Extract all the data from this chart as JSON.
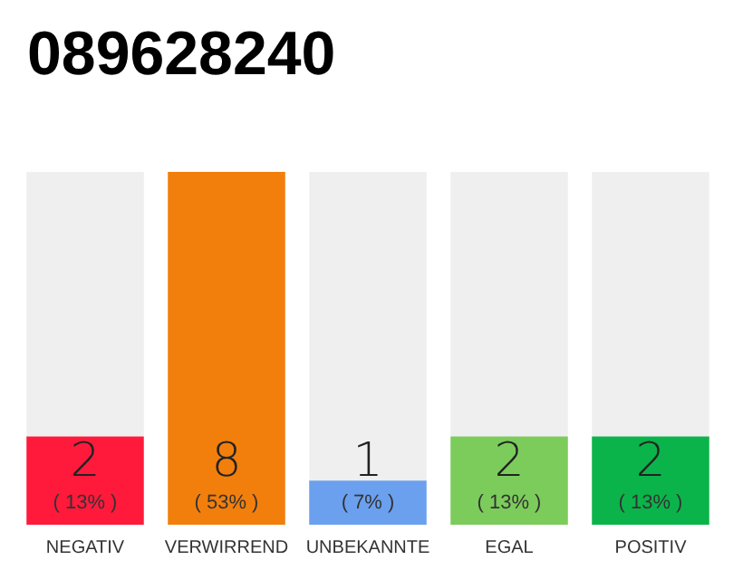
{
  "chart_data": {
    "type": "bar",
    "title": "089628240",
    "categories": [
      "NEGATIV",
      "VERWIRREND",
      "UNBEKANNTE",
      "EGAL",
      "POSITIV"
    ],
    "values": [
      2,
      8,
      1,
      2,
      2
    ],
    "colors": [
      "#ff1a3c",
      "#f27f0c",
      "#6ba0ee",
      "#7ccc5c",
      "#0bb44a"
    ],
    "value_labels": [
      "2\n( 13% )",
      "8\n( 53% )",
      "1\n( 7% )",
      "2\n( 13% )",
      "2\n( 13% )"
    ],
    "tick_labels": "x"
  }
}
